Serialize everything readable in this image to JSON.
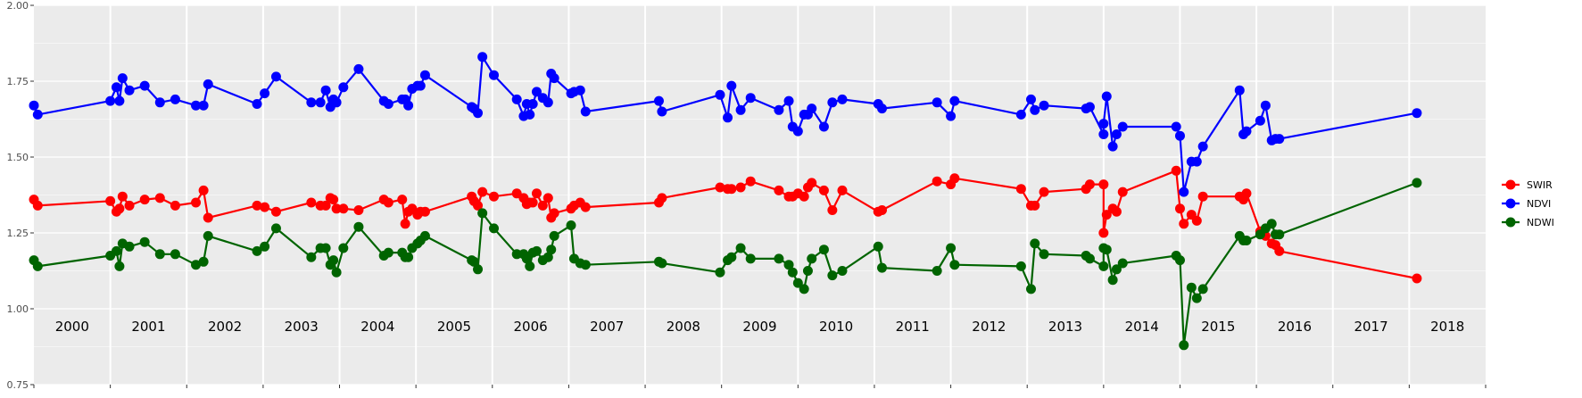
{
  "chart_data": {
    "type": "line",
    "title": "",
    "xlabel": "",
    "ylabel": "",
    "grid": true,
    "legend_position": "right",
    "ylim": [
      0.75,
      2.0
    ],
    "xlim": [
      1999.5,
      2018.5
    ],
    "y_ticks": [
      0.75,
      1.0,
      1.25,
      1.5,
      1.75,
      2.0
    ],
    "y_tick_labels": [
      "0.75",
      "1.00",
      "1.25",
      "1.50",
      "1.75",
      "2.00"
    ],
    "year_labels": [
      "2000",
      "2001",
      "2002",
      "2003",
      "2004",
      "2005",
      "2006",
      "2007",
      "2008",
      "2009",
      "2010",
      "2011",
      "2012",
      "2013",
      "2014",
      "2015",
      "2016",
      "2017",
      "2018"
    ],
    "colors": {
      "panel": "#ebebeb",
      "grid": "#ffffff"
    },
    "series": [
      {
        "name": "SWIR",
        "color": "#ff0000",
        "x": [
          1999.5,
          1999.55,
          2000.5,
          2000.58,
          2000.62,
          2000.66,
          2000.75,
          2000.95,
          2001.15,
          2001.35,
          2001.62,
          2001.72,
          2001.78,
          2002.42,
          2002.52,
          2002.67,
          2003.13,
          2003.25,
          2003.32,
          2003.38,
          2003.42,
          2003.46,
          2003.55,
          2003.75,
          2004.08,
          2004.14,
          2004.32,
          2004.36,
          2004.4,
          2004.45,
          2004.52,
          2004.56,
          2004.62,
          2005.23,
          2005.26,
          2005.31,
          2005.37,
          2005.52,
          2005.82,
          2005.91,
          2005.95,
          2005.99,
          2006.03,
          2006.08,
          2006.16,
          2006.23,
          2006.27,
          2006.31,
          2006.53,
          2006.57,
          2006.65,
          2006.72,
          2007.68,
          2007.72,
          2008.48,
          2008.58,
          2008.63,
          2008.75,
          2008.88,
          2009.25,
          2009.38,
          2009.43,
          2009.5,
          2009.58,
          2009.63,
          2009.68,
          2009.84,
          2009.95,
          2010.08,
          2010.55,
          2010.6,
          2011.32,
          2011.5,
          2011.55,
          2012.42,
          2012.55,
          2012.6,
          2012.72,
          2013.27,
          2013.32,
          2013.5,
          2013.5,
          2013.54,
          2013.62,
          2013.67,
          2013.75,
          2014.45,
          2014.5,
          2014.55,
          2014.65,
          2014.72,
          2014.8,
          2015.28,
          2015.33,
          2015.37,
          2015.55,
          2015.62,
          2015.7,
          2015.75,
          2015.8,
          2017.6
        ],
        "y": [
          1.36,
          1.34,
          1.355,
          1.32,
          1.33,
          1.37,
          1.34,
          1.36,
          1.365,
          1.34,
          1.35,
          1.39,
          1.3,
          1.34,
          1.335,
          1.32,
          1.35,
          1.34,
          1.34,
          1.365,
          1.36,
          1.33,
          1.33,
          1.325,
          1.36,
          1.35,
          1.36,
          1.28,
          1.32,
          1.33,
          1.31,
          1.32,
          1.32,
          1.37,
          1.355,
          1.34,
          1.385,
          1.37,
          1.38,
          1.365,
          1.345,
          1.35,
          1.35,
          1.38,
          1.34,
          1.365,
          1.3,
          1.315,
          1.33,
          1.34,
          1.35,
          1.335,
          1.35,
          1.365,
          1.4,
          1.395,
          1.395,
          1.4,
          1.42,
          1.39,
          1.37,
          1.37,
          1.38,
          1.37,
          1.4,
          1.415,
          1.39,
          1.325,
          1.39,
          1.32,
          1.325,
          1.42,
          1.41,
          1.43,
          1.395,
          1.34,
          1.34,
          1.385,
          1.395,
          1.41,
          1.41,
          1.25,
          1.31,
          1.33,
          1.32,
          1.385,
          1.455,
          1.33,
          1.28,
          1.31,
          1.29,
          1.37,
          1.37,
          1.36,
          1.38,
          1.255,
          1.24,
          1.215,
          1.21,
          1.19,
          1.1
        ]
      },
      {
        "name": "NDVI",
        "color": "#0000ff",
        "x": [
          1999.5,
          1999.55,
          2000.5,
          2000.58,
          2000.62,
          2000.66,
          2000.75,
          2000.95,
          2001.15,
          2001.35,
          2001.62,
          2001.72,
          2001.78,
          2002.42,
          2002.52,
          2002.67,
          2003.13,
          2003.25,
          2003.32,
          2003.38,
          2003.42,
          2003.46,
          2003.55,
          2003.75,
          2004.08,
          2004.14,
          2004.32,
          2004.36,
          2004.4,
          2004.45,
          2004.52,
          2004.56,
          2004.62,
          2005.23,
          2005.26,
          2005.31,
          2005.37,
          2005.52,
          2005.82,
          2005.91,
          2005.95,
          2005.99,
          2006.03,
          2006.08,
          2006.16,
          2006.23,
          2006.27,
          2006.31,
          2006.53,
          2006.57,
          2006.65,
          2006.72,
          2007.68,
          2007.72,
          2008.48,
          2008.58,
          2008.63,
          2008.75,
          2008.88,
          2009.25,
          2009.38,
          2009.43,
          2009.5,
          2009.58,
          2009.63,
          2009.68,
          2009.84,
          2009.95,
          2010.08,
          2010.55,
          2010.6,
          2011.32,
          2011.5,
          2011.55,
          2012.42,
          2012.55,
          2012.6,
          2012.72,
          2013.27,
          2013.32,
          2013.5,
          2013.5,
          2013.54,
          2013.62,
          2013.67,
          2013.75,
          2014.45,
          2014.5,
          2014.55,
          2014.65,
          2014.72,
          2014.8,
          2015.28,
          2015.33,
          2015.37,
          2015.55,
          2015.62,
          2015.7,
          2015.75,
          2015.8,
          2017.6
        ],
        "y": [
          1.67,
          1.64,
          1.685,
          1.73,
          1.685,
          1.76,
          1.72,
          1.735,
          1.68,
          1.69,
          1.67,
          1.67,
          1.74,
          1.675,
          1.71,
          1.765,
          1.68,
          1.68,
          1.72,
          1.665,
          1.69,
          1.68,
          1.73,
          1.79,
          1.685,
          1.675,
          1.69,
          1.69,
          1.67,
          1.725,
          1.735,
          1.735,
          1.77,
          1.665,
          1.66,
          1.645,
          1.83,
          1.77,
          1.69,
          1.635,
          1.675,
          1.64,
          1.675,
          1.715,
          1.695,
          1.68,
          1.775,
          1.76,
          1.71,
          1.715,
          1.72,
          1.65,
          1.685,
          1.65,
          1.705,
          1.63,
          1.735,
          1.655,
          1.695,
          1.655,
          1.685,
          1.6,
          1.585,
          1.64,
          1.64,
          1.66,
          1.6,
          1.68,
          1.69,
          1.675,
          1.66,
          1.68,
          1.635,
          1.685,
          1.64,
          1.69,
          1.655,
          1.67,
          1.66,
          1.665,
          1.575,
          1.61,
          1.7,
          1.535,
          1.575,
          1.6,
          1.6,
          1.57,
          1.385,
          1.485,
          1.485,
          1.535,
          1.72,
          1.575,
          1.585,
          1.62,
          1.67,
          1.555,
          1.56,
          1.56,
          1.645
        ],
        "x_note": ""
      },
      {
        "name": "NDWI",
        "color": "#006400",
        "x": [
          1999.5,
          1999.55,
          2000.5,
          2000.58,
          2000.62,
          2000.66,
          2000.75,
          2000.95,
          2001.15,
          2001.35,
          2001.62,
          2001.72,
          2001.78,
          2002.42,
          2002.52,
          2002.67,
          2003.13,
          2003.25,
          2003.32,
          2003.38,
          2003.42,
          2003.46,
          2003.55,
          2003.75,
          2004.08,
          2004.14,
          2004.32,
          2004.36,
          2004.4,
          2004.45,
          2004.52,
          2004.56,
          2004.62,
          2005.23,
          2005.26,
          2005.31,
          2005.37,
          2005.52,
          2005.82,
          2005.91,
          2005.95,
          2005.99,
          2006.03,
          2006.08,
          2006.16,
          2006.23,
          2006.27,
          2006.31,
          2006.53,
          2006.57,
          2006.65,
          2006.72,
          2007.68,
          2007.72,
          2008.48,
          2008.58,
          2008.63,
          2008.75,
          2008.88,
          2009.25,
          2009.38,
          2009.43,
          2009.5,
          2009.58,
          2009.63,
          2009.68,
          2009.84,
          2009.95,
          2010.08,
          2010.55,
          2010.6,
          2011.32,
          2011.5,
          2011.55,
          2012.42,
          2012.55,
          2012.6,
          2012.72,
          2013.27,
          2013.32,
          2013.5,
          2013.5,
          2013.54,
          2013.62,
          2013.67,
          2013.75,
          2014.45,
          2014.5,
          2014.55,
          2014.65,
          2014.72,
          2014.8,
          2015.28,
          2015.33,
          2015.37,
          2015.55,
          2015.62,
          2015.7,
          2015.75,
          2015.8,
          2017.6
        ],
        "y": [
          1.16,
          1.14,
          1.175,
          1.19,
          1.14,
          1.215,
          1.205,
          1.22,
          1.18,
          1.18,
          1.145,
          1.155,
          1.24,
          1.19,
          1.205,
          1.265,
          1.17,
          1.2,
          1.2,
          1.145,
          1.16,
          1.12,
          1.2,
          1.27,
          1.175,
          1.185,
          1.185,
          1.17,
          1.17,
          1.2,
          1.215,
          1.225,
          1.24,
          1.16,
          1.155,
          1.13,
          1.315,
          1.265,
          1.18,
          1.18,
          1.165,
          1.14,
          1.185,
          1.19,
          1.16,
          1.17,
          1.195,
          1.24,
          1.275,
          1.165,
          1.15,
          1.145,
          1.155,
          1.15,
          1.12,
          1.16,
          1.17,
          1.2,
          1.165,
          1.165,
          1.145,
          1.12,
          1.085,
          1.065,
          1.125,
          1.165,
          1.195,
          1.11,
          1.125,
          1.205,
          1.135,
          1.125,
          1.2,
          1.145,
          1.14,
          1.065,
          1.215,
          1.18,
          1.175,
          1.165,
          1.14,
          1.2,
          1.195,
          1.095,
          1.13,
          1.15,
          1.175,
          1.16,
          0.88,
          1.07,
          1.035,
          1.065,
          1.24,
          1.225,
          1.225,
          1.245,
          1.265,
          1.28,
          1.245,
          1.245,
          1.415
        ]
      }
    ]
  }
}
